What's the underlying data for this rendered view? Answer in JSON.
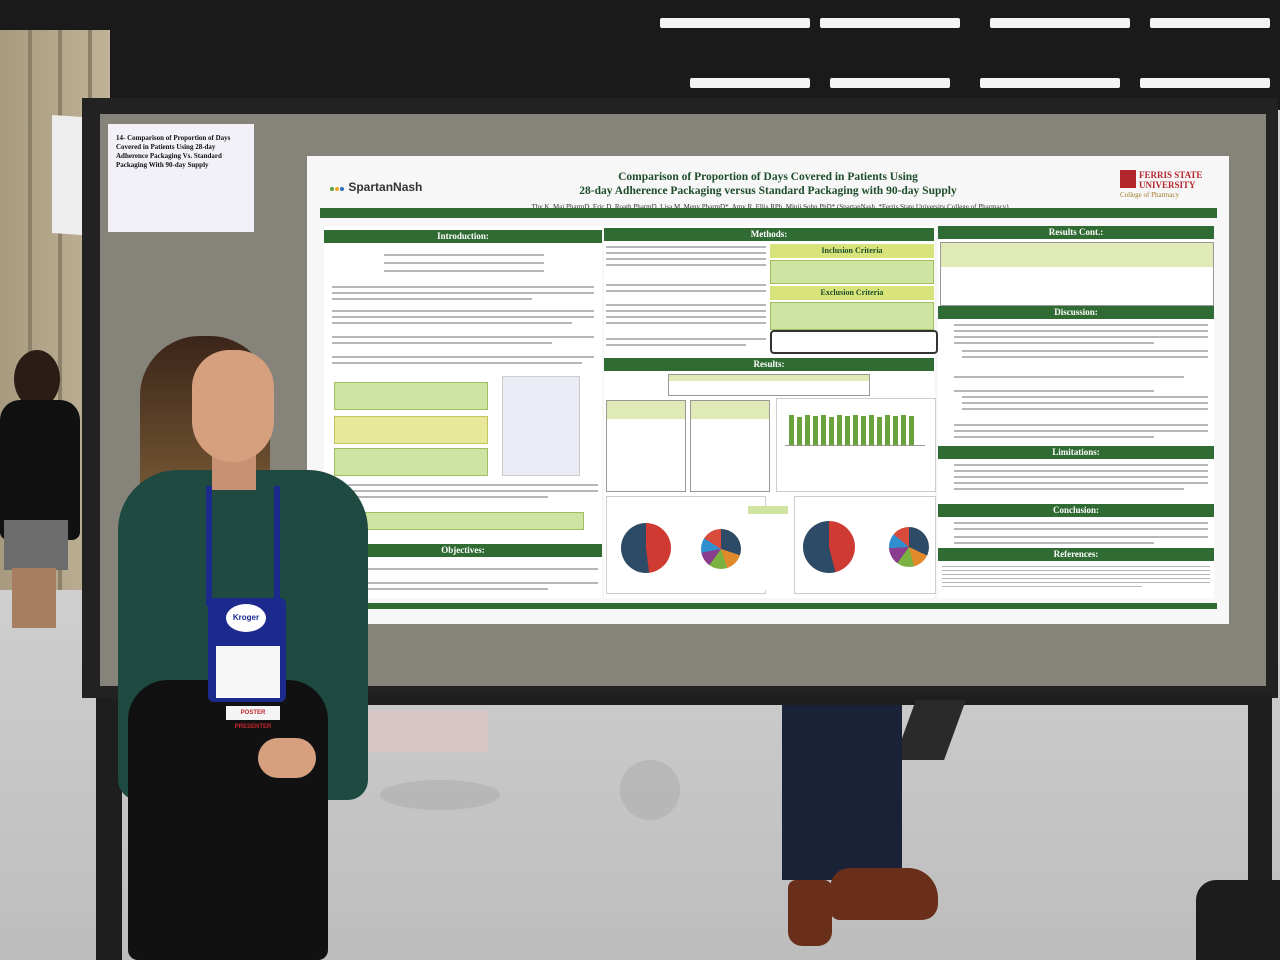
{
  "scene": {
    "description_tags": [
      "poster-session",
      "presenter",
      "conference-hall"
    ]
  },
  "tag_card": {
    "text": "14- Comparison of Proportion of Days Covered in Patients Using 28-day Adherence Packaging Vs. Standard Packaging With 90-day Supply"
  },
  "poster": {
    "title_line1": "Comparison of Proportion of Days Covered in Patients Using",
    "title_line2": "28-day Adherence Packaging versus Standard Packaging with 90-day Supply",
    "authors": "Thy K. Mai PharmD, Eric D. Roath PharmD, Lisa M. Meny PharmD*, Amy R. Ellis RPh, Minji Sohn PhD* (SpartanNash, *Ferris State University College of Pharmacy)",
    "logo_left": "SpartanNash",
    "logo_right_line1": "FERRIS STATE",
    "logo_right_line2": "UNIVERSITY",
    "logo_right_line3": "College of Pharmacy",
    "sections": {
      "introduction": "Introduction:",
      "objectives": "Objectives:",
      "methods": "Methods:",
      "inclusion": "Inclusion Criteria",
      "exclusion": "Exclusion Criteria",
      "results": "Results:",
      "results_cont": "Results Cont.:",
      "discussion": "Discussion:",
      "limitations": "Limitations:",
      "conclusion": "Conclusion:",
      "references": "References:"
    }
  },
  "badge": {
    "logo": "Kroger",
    "ribbon": "POSTER PRESENTER"
  },
  "colors": {
    "poster_green": "#2f6b32",
    "badge_blue": "#1b2a8c",
    "ferris_red": "#b3262b"
  }
}
